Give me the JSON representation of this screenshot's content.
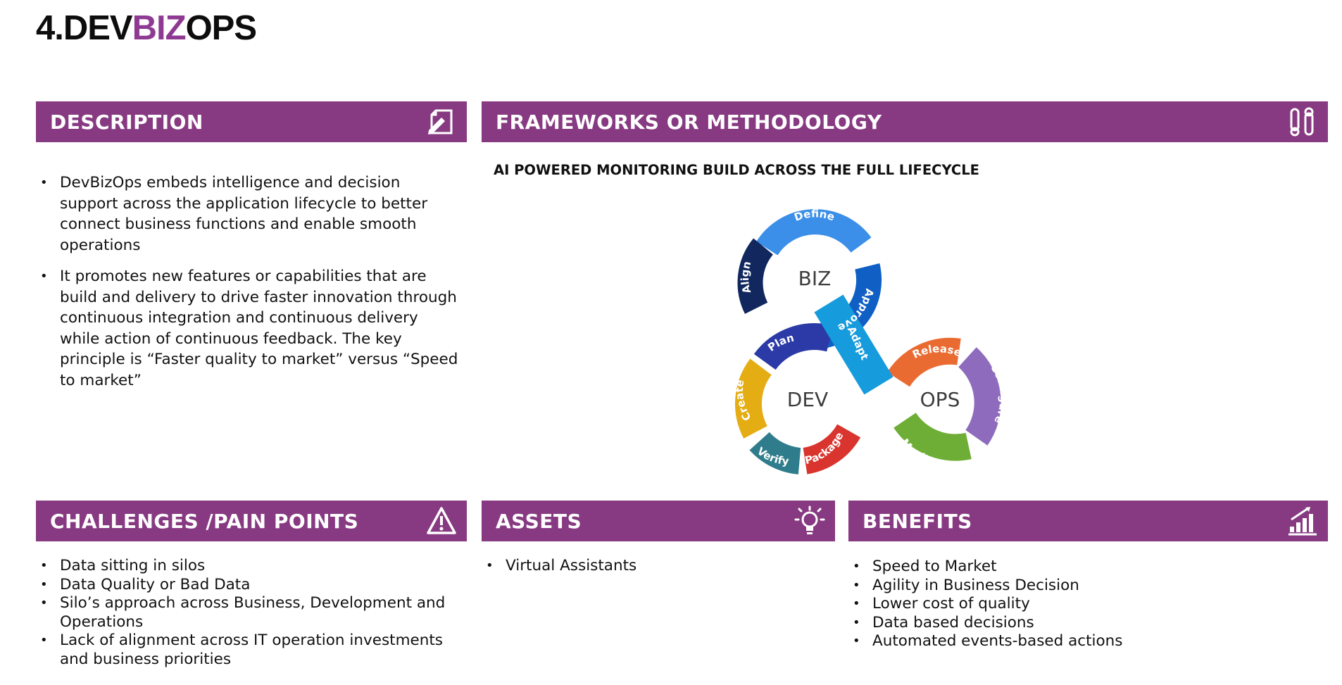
{
  "title": {
    "prefix": "4.DEV",
    "accent": "BIZ",
    "suffix": "OPS"
  },
  "colors": {
    "header_bg": "#873a82",
    "accent": "#8e3a93"
  },
  "description": {
    "heading": "DESCRIPTION",
    "icon": "document-pen-icon",
    "items": [
      "DevBizOps embeds intelligence and decision support across the application lifecycle to better connect business functions and enable smooth operations",
      "It  promotes new features or capabilities that are build and delivery to drive faster innovation through continuous integration and continuous delivery while action of continuous feedback.  The key principle is “Faster quality to market” versus “Speed to market”"
    ]
  },
  "frameworks": {
    "heading": "FRAMEWORKS OR METHODOLOGY",
    "icon": "workflow-icon",
    "subheading": "AI POWERED MONITORING BUILD ACROSS THE FULL LIFECYCLE"
  },
  "diagram": {
    "loops": [
      {
        "label": "BIZ",
        "segments": [
          {
            "label": "Define",
            "color": "#3b8fe8"
          },
          {
            "label": "Approve",
            "color": "#0f5fc4"
          },
          {
            "label": "Align",
            "color": "#11275e"
          }
        ]
      },
      {
        "label": "DEV",
        "segments": [
          {
            "label": "Plan",
            "color": "#2b3aa6"
          },
          {
            "label": "Create",
            "color": "#e5ad14"
          },
          {
            "label": "Verify",
            "color": "#2f7d8c"
          },
          {
            "label": "Package",
            "color": "#d9342e"
          }
        ]
      },
      {
        "label": "OPS",
        "segments": [
          {
            "label": "Release",
            "color": "#ea6b32"
          },
          {
            "label": "Configure",
            "color": "#8e6bbd"
          },
          {
            "label": "Monitor",
            "color": "#6eae36"
          }
        ]
      }
    ],
    "center": {
      "label": "Adapt",
      "color": "#169bdc"
    }
  },
  "challenges": {
    "heading": "CHALLENGES /PAIN POINTS",
    "icon": "warning-icon",
    "items": [
      "Data sitting in silos",
      "Data Quality or Bad Data",
      "Silo’s approach across Business, Development and Operations",
      "Lack of alignment across IT operation investments and business priorities"
    ]
  },
  "assets": {
    "heading": "ASSETS",
    "icon": "lightbulb-icon",
    "items": [
      "Virtual Assistants"
    ]
  },
  "benefits": {
    "heading": "BENEFITS",
    "icon": "bar-chart-growth-icon",
    "items": [
      "Speed to Market",
      "Agility in Business Decision",
      "Lower cost of quality",
      "Data based decisions",
      "Automated events-based actions"
    ]
  }
}
